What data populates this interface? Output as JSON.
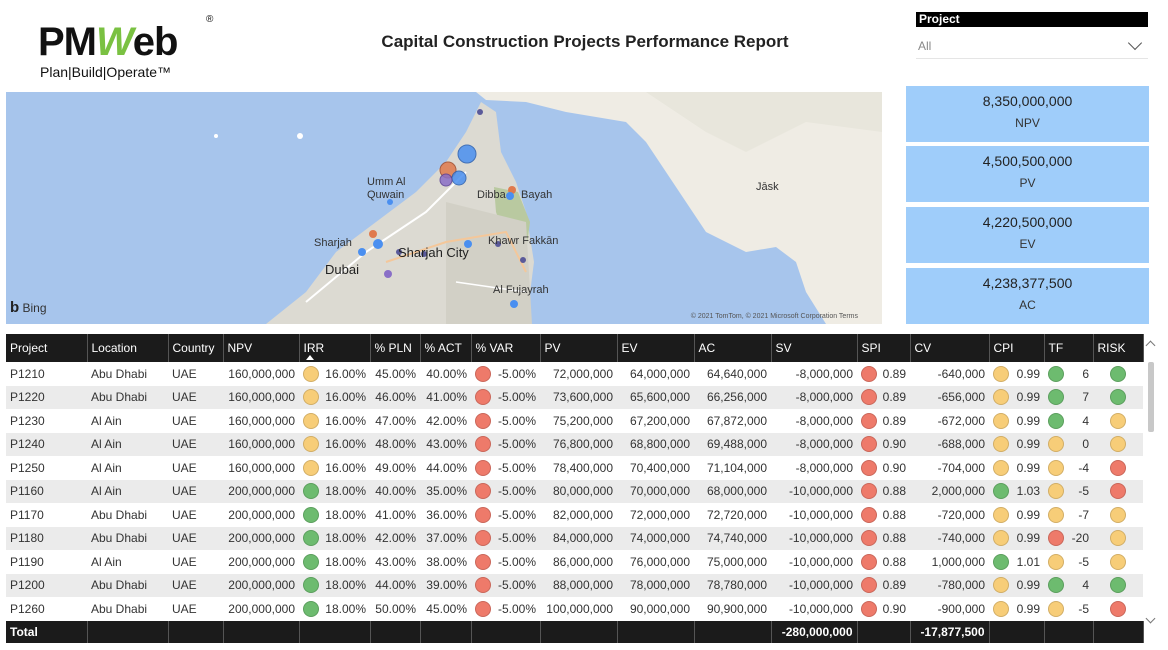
{
  "header": {
    "logo_main_a": "PM",
    "logo_main_b": "W",
    "logo_main_c": "eb",
    "logo_reg": "®",
    "logo_tagline": "Plan|Build|Operate™",
    "title": "Capital Construction Projects Performance Report"
  },
  "slicer": {
    "label": "Project",
    "value": "All"
  },
  "map": {
    "labels": {
      "umm": "Umm Al",
      "quwain": "Quwain",
      "dibba": "Dibba",
      "bayah": "Bayah",
      "jask": "Jāsk",
      "sharjah": "Sharjah",
      "khawr": "Khawr Fakkān",
      "sharjah_city": "Sharjah City",
      "dubai": "Dubai",
      "fujayrah": "Al Fujayrah"
    },
    "bing": "Bing",
    "copyright": "© 2021 TomTom, © 2021 Microsoft Corporation  Terms"
  },
  "kpis": [
    {
      "value": "8,350,000,000",
      "label": "NPV"
    },
    {
      "value": "4,500,500,000",
      "label": "PV"
    },
    {
      "value": "4,220,500,000",
      "label": "EV"
    },
    {
      "value": "4,238,377,500",
      "label": "AC"
    }
  ],
  "colors": {
    "green": "#6dbb6f",
    "yellow": "#f7cd78",
    "red": "#ee7a6a"
  },
  "table": {
    "columns": [
      "Project",
      "Location",
      "Country",
      "NPV",
      "IRR",
      "% PLN",
      "% ACT",
      "% VAR",
      "PV",
      "EV",
      "AC",
      "SV",
      "SPI",
      "CV",
      "CPI",
      "TF",
      "RISK"
    ],
    "rows": [
      {
        "project": "P1210",
        "location": "Abu Dhabi",
        "country": "UAE",
        "npv": "160,000,000",
        "irr_c": "yellow",
        "irr": "16.00%",
        "pln": "45.00%",
        "act": "40.00%",
        "var_c": "red",
        "var": "-5.00%",
        "pv": "72,000,000",
        "ev": "64,000,000",
        "ac": "64,640,000",
        "sv": "-8,000,000",
        "spi_c": "red",
        "spi": "0.89",
        "cv": "-640,000",
        "cpi_c": "yellow",
        "cpi": "0.99",
        "tf_c": "green",
        "tf": "6",
        "risk_c": "green"
      },
      {
        "project": "P1220",
        "location": "Abu Dhabi",
        "country": "UAE",
        "npv": "160,000,000",
        "irr_c": "yellow",
        "irr": "16.00%",
        "pln": "46.00%",
        "act": "41.00%",
        "var_c": "red",
        "var": "-5.00%",
        "pv": "73,600,000",
        "ev": "65,600,000",
        "ac": "66,256,000",
        "sv": "-8,000,000",
        "spi_c": "red",
        "spi": "0.89",
        "cv": "-656,000",
        "cpi_c": "yellow",
        "cpi": "0.99",
        "tf_c": "green",
        "tf": "7",
        "risk_c": "green"
      },
      {
        "project": "P1230",
        "location": "Al Ain",
        "country": "UAE",
        "npv": "160,000,000",
        "irr_c": "yellow",
        "irr": "16.00%",
        "pln": "47.00%",
        "act": "42.00%",
        "var_c": "red",
        "var": "-5.00%",
        "pv": "75,200,000",
        "ev": "67,200,000",
        "ac": "67,872,000",
        "sv": "-8,000,000",
        "spi_c": "red",
        "spi": "0.89",
        "cv": "-672,000",
        "cpi_c": "yellow",
        "cpi": "0.99",
        "tf_c": "green",
        "tf": "4",
        "risk_c": "yellow"
      },
      {
        "project": "P1240",
        "location": "Al Ain",
        "country": "UAE",
        "npv": "160,000,000",
        "irr_c": "yellow",
        "irr": "16.00%",
        "pln": "48.00%",
        "act": "43.00%",
        "var_c": "red",
        "var": "-5.00%",
        "pv": "76,800,000",
        "ev": "68,800,000",
        "ac": "69,488,000",
        "sv": "-8,000,000",
        "spi_c": "red",
        "spi": "0.90",
        "cv": "-688,000",
        "cpi_c": "yellow",
        "cpi": "0.99",
        "tf_c": "yellow",
        "tf": "0",
        "risk_c": "yellow"
      },
      {
        "project": "P1250",
        "location": "Al Ain",
        "country": "UAE",
        "npv": "160,000,000",
        "irr_c": "yellow",
        "irr": "16.00%",
        "pln": "49.00%",
        "act": "44.00%",
        "var_c": "red",
        "var": "-5.00%",
        "pv": "78,400,000",
        "ev": "70,400,000",
        "ac": "71,104,000",
        "sv": "-8,000,000",
        "spi_c": "red",
        "spi": "0.90",
        "cv": "-704,000",
        "cpi_c": "yellow",
        "cpi": "0.99",
        "tf_c": "yellow",
        "tf": "-4",
        "risk_c": "red"
      },
      {
        "project": "P1160",
        "location": "Al Ain",
        "country": "UAE",
        "npv": "200,000,000",
        "irr_c": "green",
        "irr": "18.00%",
        "pln": "40.00%",
        "act": "35.00%",
        "var_c": "red",
        "var": "-5.00%",
        "pv": "80,000,000",
        "ev": "70,000,000",
        "ac": "68,000,000",
        "sv": "-10,000,000",
        "spi_c": "red",
        "spi": "0.88",
        "cv": "2,000,000",
        "cpi_c": "green",
        "cpi": "1.03",
        "tf_c": "yellow",
        "tf": "-5",
        "risk_c": "red"
      },
      {
        "project": "P1170",
        "location": "Abu Dhabi",
        "country": "UAE",
        "npv": "200,000,000",
        "irr_c": "green",
        "irr": "18.00%",
        "pln": "41.00%",
        "act": "36.00%",
        "var_c": "red",
        "var": "-5.00%",
        "pv": "82,000,000",
        "ev": "72,000,000",
        "ac": "72,720,000",
        "sv": "-10,000,000",
        "spi_c": "red",
        "spi": "0.88",
        "cv": "-720,000",
        "cpi_c": "yellow",
        "cpi": "0.99",
        "tf_c": "yellow",
        "tf": "-7",
        "risk_c": "yellow"
      },
      {
        "project": "P1180",
        "location": "Abu Dhabi",
        "country": "UAE",
        "npv": "200,000,000",
        "irr_c": "green",
        "irr": "18.00%",
        "pln": "42.00%",
        "act": "37.00%",
        "var_c": "red",
        "var": "-5.00%",
        "pv": "84,000,000",
        "ev": "74,000,000",
        "ac": "74,740,000",
        "sv": "-10,000,000",
        "spi_c": "red",
        "spi": "0.88",
        "cv": "-740,000",
        "cpi_c": "yellow",
        "cpi": "0.99",
        "tf_c": "red",
        "tf": "-20",
        "risk_c": "yellow"
      },
      {
        "project": "P1190",
        "location": "Al Ain",
        "country": "UAE",
        "npv": "200,000,000",
        "irr_c": "green",
        "irr": "18.00%",
        "pln": "43.00%",
        "act": "38.00%",
        "var_c": "red",
        "var": "-5.00%",
        "pv": "86,000,000",
        "ev": "76,000,000",
        "ac": "75,000,000",
        "sv": "-10,000,000",
        "spi_c": "red",
        "spi": "0.88",
        "cv": "1,000,000",
        "cpi_c": "green",
        "cpi": "1.01",
        "tf_c": "yellow",
        "tf": "-5",
        "risk_c": "yellow"
      },
      {
        "project": "P1200",
        "location": "Abu Dhabi",
        "country": "UAE",
        "npv": "200,000,000",
        "irr_c": "green",
        "irr": "18.00%",
        "pln": "44.00%",
        "act": "39.00%",
        "var_c": "red",
        "var": "-5.00%",
        "pv": "88,000,000",
        "ev": "78,000,000",
        "ac": "78,780,000",
        "sv": "-10,000,000",
        "spi_c": "red",
        "spi": "0.89",
        "cv": "-780,000",
        "cpi_c": "yellow",
        "cpi": "0.99",
        "tf_c": "green",
        "tf": "4",
        "risk_c": "green"
      },
      {
        "project": "P1260",
        "location": "Abu Dhabi",
        "country": "UAE",
        "npv": "200,000,000",
        "irr_c": "green",
        "irr": "18.00%",
        "pln": "50.00%",
        "act": "45.00%",
        "var_c": "red",
        "var": "-5.00%",
        "pv": "100,000,000",
        "ev": "90,000,000",
        "ac": "90,900,000",
        "sv": "-10,000,000",
        "spi_c": "red",
        "spi": "0.90",
        "cv": "-900,000",
        "cpi_c": "yellow",
        "cpi": "0.99",
        "tf_c": "yellow",
        "tf": "-5",
        "risk_c": "red"
      }
    ],
    "totals": {
      "label": "Total",
      "sv": "-280,000,000",
      "cv": "-17,877,500"
    }
  }
}
